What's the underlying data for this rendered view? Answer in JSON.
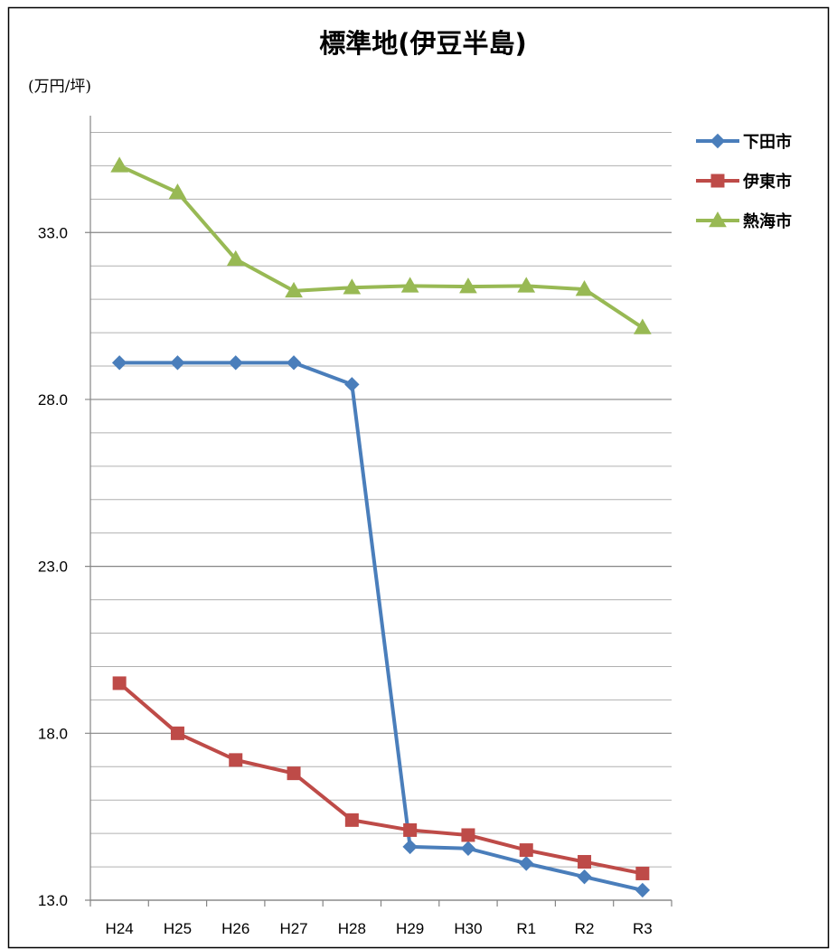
{
  "chart_data": {
    "type": "line",
    "title": "標準地(伊豆半島)",
    "unit_label": "(万円/坪)",
    "categories": [
      "H24",
      "H25",
      "H26",
      "H27",
      "H28",
      "H29",
      "H30",
      "R1",
      "R2",
      "R3"
    ],
    "ylim": [
      13.0,
      36.5
    ],
    "yticks": [
      13.0,
      18.0,
      23.0,
      28.0,
      33.0
    ],
    "ytick_labels": [
      "13.0",
      "18.0",
      "23.0",
      "28.0",
      "33.0"
    ],
    "minor_grid_step": 1.0,
    "grid": true,
    "legend_position": "right",
    "series": [
      {
        "name": "下田市",
        "color": "#4A7EBB",
        "marker": "diamond",
        "values": [
          29.1,
          29.1,
          29.1,
          29.1,
          28.45,
          14.6,
          14.55,
          14.1,
          13.7,
          13.3
        ]
      },
      {
        "name": "伊東市",
        "color": "#BE4B48",
        "marker": "square",
        "values": [
          19.5,
          18.0,
          17.2,
          16.8,
          15.4,
          15.1,
          14.95,
          14.5,
          14.15,
          13.8
        ]
      },
      {
        "name": "熱海市",
        "color": "#98B954",
        "marker": "triangle",
        "values": [
          35.0,
          34.2,
          32.2,
          31.25,
          31.35,
          31.4,
          31.38,
          31.4,
          31.3,
          30.15
        ]
      }
    ]
  }
}
